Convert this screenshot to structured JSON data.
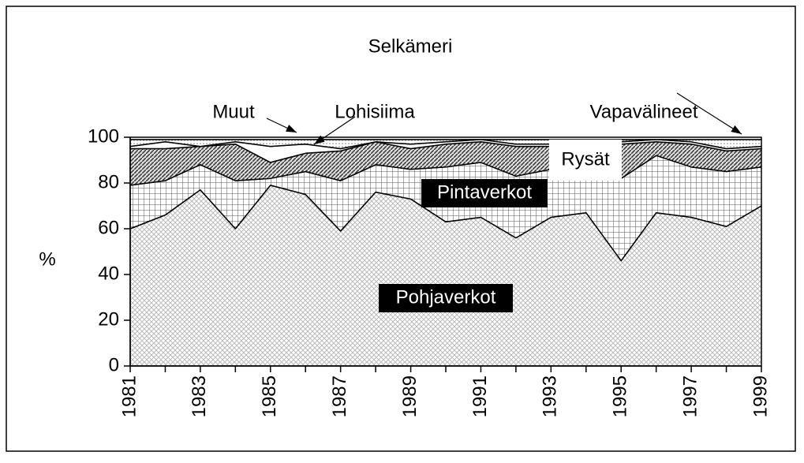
{
  "chart_data": {
    "type": "stacked_area",
    "title": "Selkämeri",
    "y_label": "%",
    "x": [
      1981,
      1982,
      1983,
      1984,
      1985,
      1986,
      1987,
      1988,
      1989,
      1990,
      1991,
      1992,
      1993,
      1994,
      1995,
      1996,
      1997,
      1998,
      1999
    ],
    "xlim": [
      1981,
      1999
    ],
    "xticks": [
      1981,
      1983,
      1985,
      1987,
      1989,
      1991,
      1993,
      1995,
      1997,
      1999
    ],
    "ylim": [
      0,
      100
    ],
    "yticks": [
      0,
      20,
      40,
      60,
      80,
      100
    ],
    "series": [
      {
        "name": "Pohjaverkot",
        "color": "#bbbbbb",
        "pattern": "crosshatch",
        "values": [
          60,
          66,
          77,
          60,
          79,
          75,
          59,
          76,
          73,
          63,
          65,
          56,
          65,
          67,
          46,
          67,
          65,
          61,
          70
        ]
      },
      {
        "name": "Pintaverkot",
        "color": "#555555",
        "pattern": "grid",
        "values": [
          19,
          15,
          11,
          21,
          3,
          10,
          22,
          12,
          13,
          24,
          24,
          27,
          21,
          17,
          36,
          25,
          22,
          24,
          17
        ]
      },
      {
        "name": "Rysät",
        "color": "#333333",
        "pattern": "diagonal",
        "values": [
          16,
          14,
          8,
          16,
          7,
          8,
          13,
          10,
          9,
          10,
          9,
          13,
          10,
          13,
          15,
          6,
          10,
          9,
          8
        ]
      },
      {
        "name": "Lohisiima",
        "color": "#ffffff",
        "pattern": "solid",
        "values": [
          1,
          3,
          0,
          1,
          7,
          4,
          1,
          0,
          2,
          1,
          1,
          1,
          1,
          1,
          1,
          1,
          1,
          1,
          1
        ]
      },
      {
        "name": "Vapavälineet",
        "color": "#999999",
        "pattern": "dots",
        "values": [
          3,
          1,
          3,
          1,
          3,
          2,
          4,
          1,
          2,
          1,
          0,
          2,
          2,
          1,
          1,
          0,
          1,
          4,
          3
        ]
      },
      {
        "name": "Muut",
        "color": "#ffffff",
        "pattern": "solid",
        "values": [
          1,
          1,
          1,
          1,
          1,
          1,
          1,
          1,
          1,
          1,
          1,
          1,
          1,
          1,
          1,
          1,
          1,
          1,
          1
        ]
      }
    ]
  }
}
